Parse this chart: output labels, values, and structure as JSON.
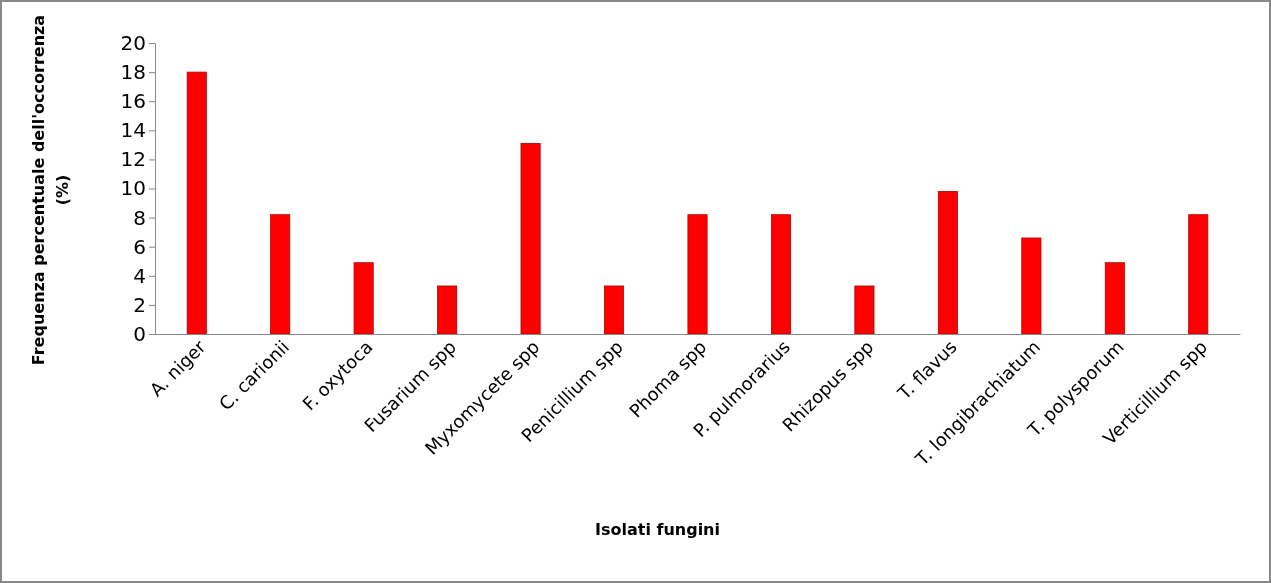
{
  "chart_data": {
    "type": "bar",
    "xlabel": "Isolati fungini",
    "ylabel": "Frequenza percentuale dell'occorrenza (%)",
    "categories": [
      "A. niger",
      "C. carionii",
      "F. oxytoca",
      "Fusarium spp",
      "Myxomycete spp",
      "Penicillium spp",
      "Phoma spp",
      "P. pulmorarius",
      "Rhizopus spp",
      "T. flavus",
      "T. longibrachiatum",
      "T. polysporum",
      "Verticillium spp"
    ],
    "values": [
      18,
      8.2,
      4.9,
      3.3,
      13.1,
      3.3,
      8.2,
      8.2,
      3.3,
      9.8,
      6.6,
      4.9,
      8.2
    ],
    "color": "#ff0000",
    "ylim": [
      0,
      20
    ],
    "yticks": [
      0,
      2,
      4,
      6,
      8,
      10,
      12,
      14,
      16,
      18,
      20
    ],
    "grid": false
  }
}
